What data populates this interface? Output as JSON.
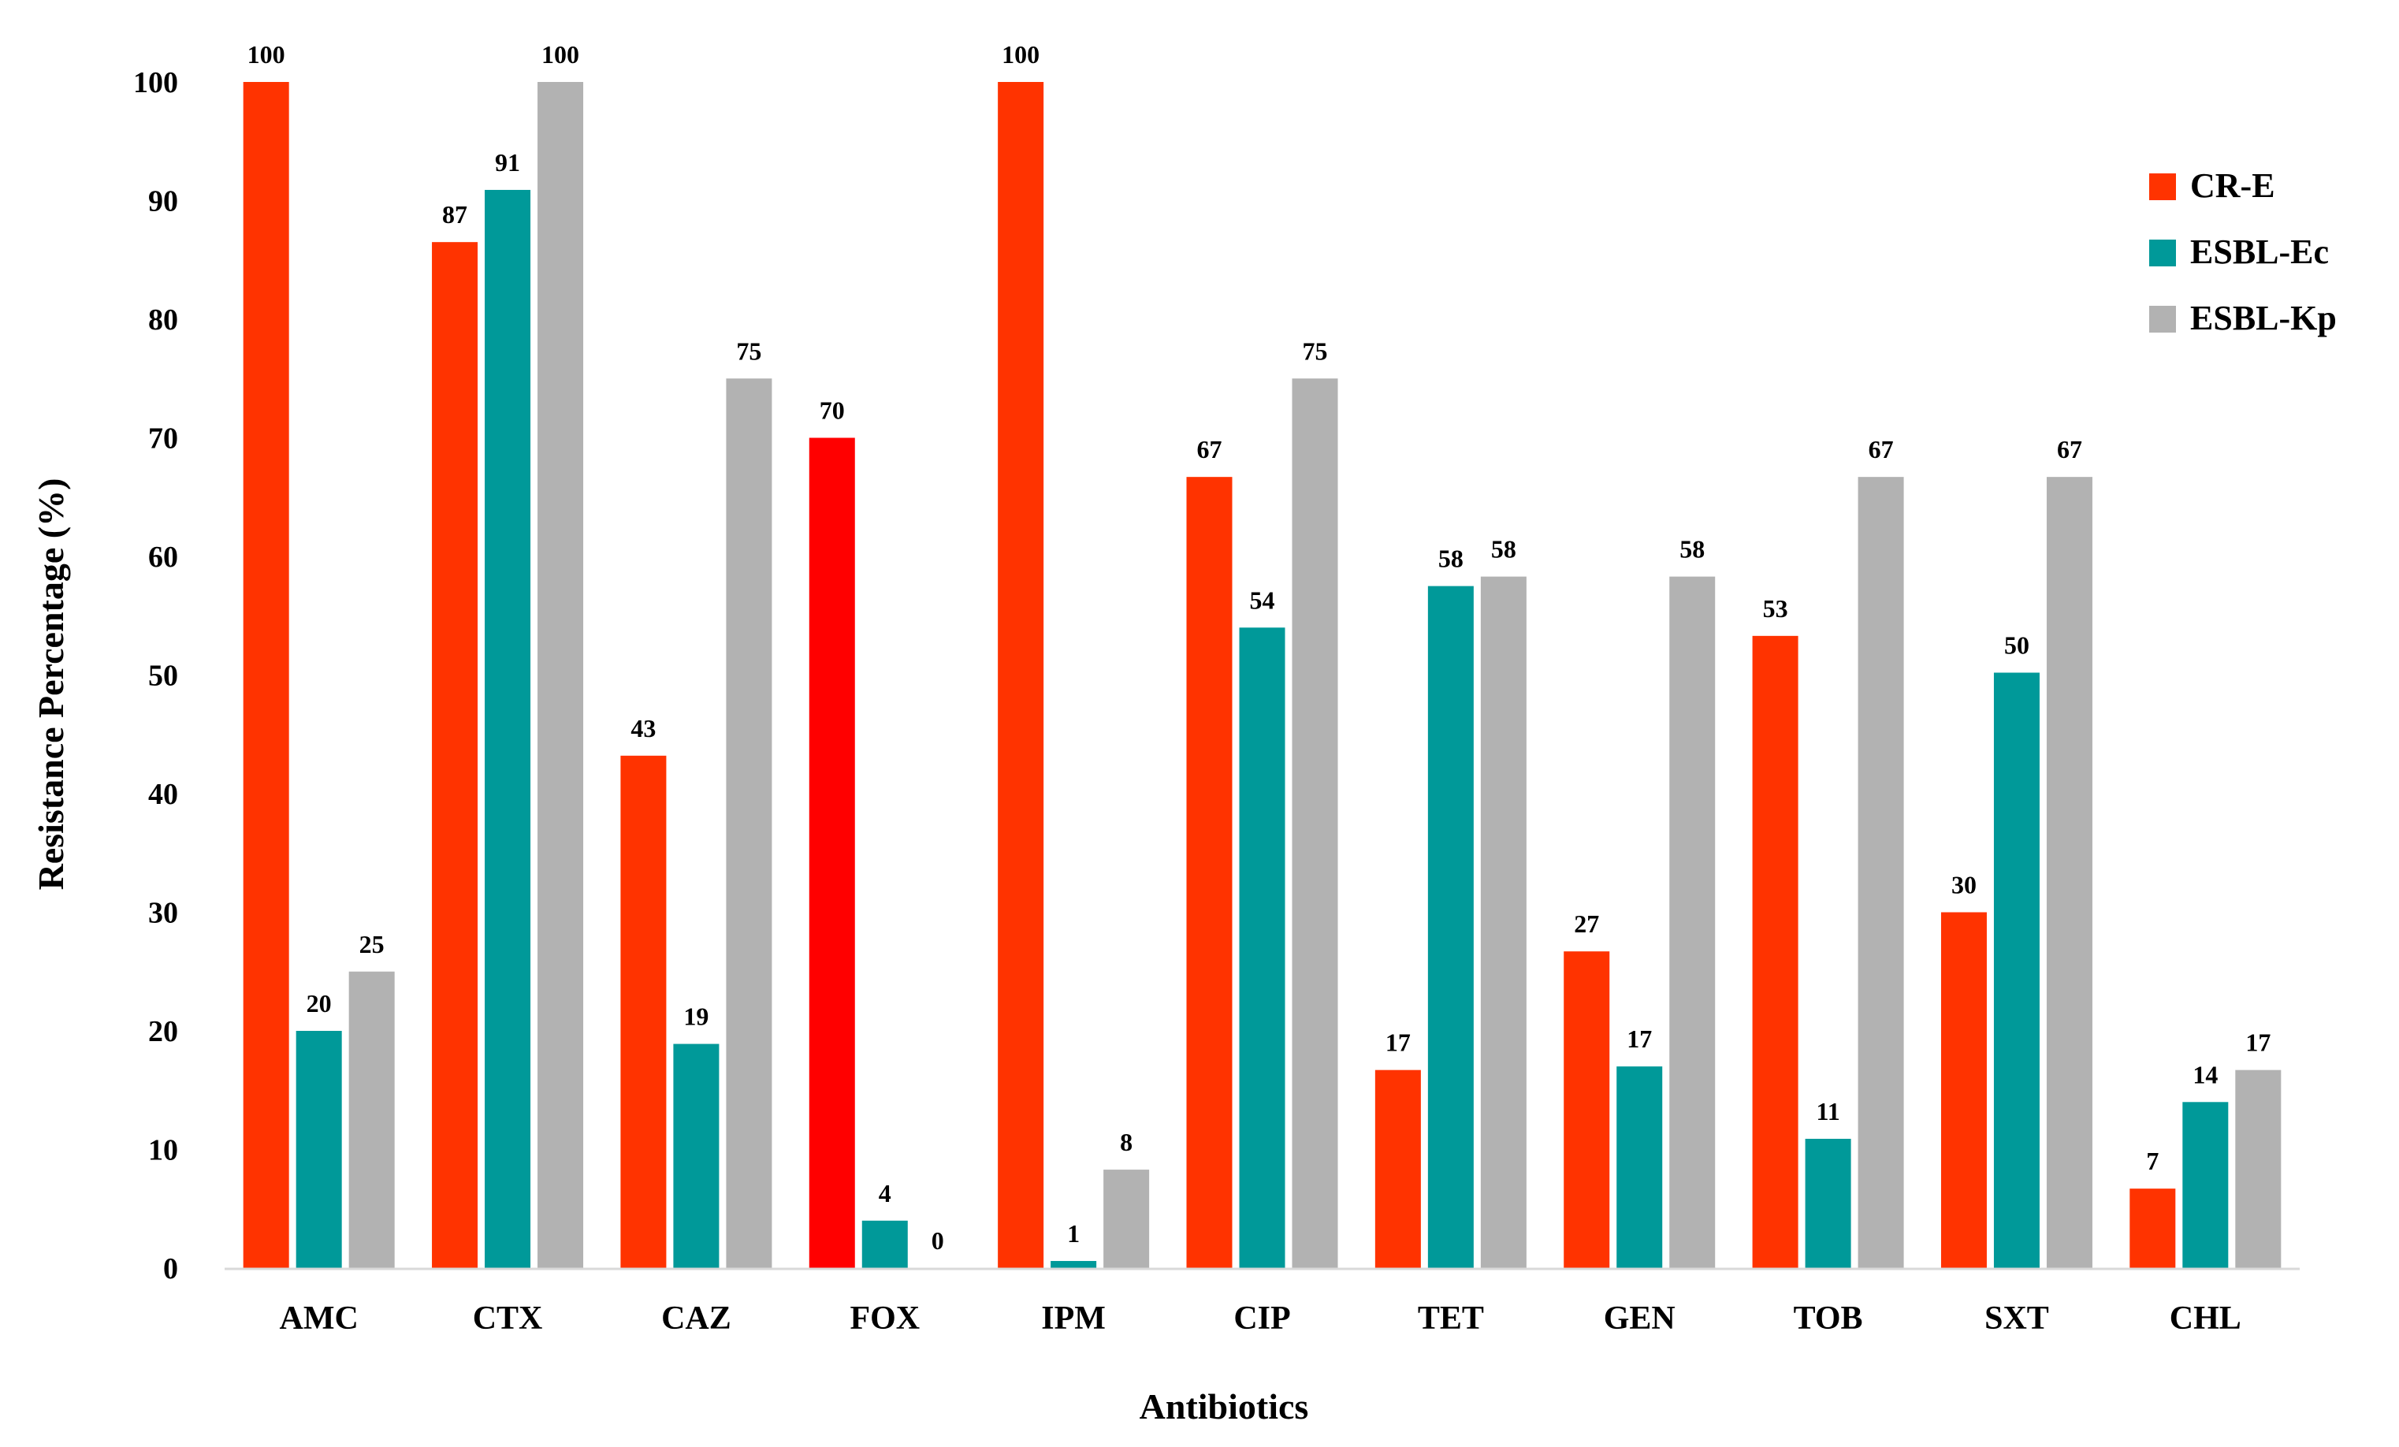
{
  "chart_data": {
    "type": "bar",
    "title": "",
    "xlabel": "Antibiotics",
    "ylabel": "Resistance Percentage (%)",
    "ylim": [
      0,
      100
    ],
    "yticks": [
      0,
      10,
      20,
      30,
      40,
      50,
      60,
      70,
      80,
      90,
      100
    ],
    "grid": false,
    "legend_position": "top-right",
    "categories": [
      "AMC",
      "CTX",
      "CAZ",
      "FOX",
      "IPM",
      "CIP",
      "TET",
      "GEN",
      "TOB",
      "SXT",
      "CHL"
    ],
    "series": [
      {
        "name": "CR-E",
        "color": "#ff3300",
        "values": [
          100,
          87,
          43,
          70,
          100,
          67,
          17,
          27,
          53,
          30,
          7
        ]
      },
      {
        "name": "ESBL-Ec",
        "color": "#009999",
        "values": [
          20,
          91,
          19,
          4,
          1,
          54,
          58,
          17,
          11,
          50,
          14
        ]
      },
      {
        "name": "ESBL-Kp",
        "color": "#b2b2b2",
        "values": [
          25,
          100,
          75,
          0,
          8,
          75,
          58,
          58,
          67,
          67,
          17
        ]
      }
    ],
    "plotted_values": [
      [
        100,
        86.5,
        43.2,
        70,
        100,
        66.7,
        16.7,
        26.7,
        53.3,
        30,
        6.7
      ],
      [
        20,
        90.9,
        18.9,
        4,
        0.6,
        54,
        57.5,
        17,
        10.9,
        50.2,
        14
      ],
      [
        25,
        100,
        75,
        0,
        8.3,
        75,
        58.3,
        58.3,
        66.7,
        66.7,
        16.7
      ]
    ],
    "bar_color_overrides": [
      {
        "series": 0,
        "category": 3,
        "color": "#ff0000"
      }
    ]
  }
}
